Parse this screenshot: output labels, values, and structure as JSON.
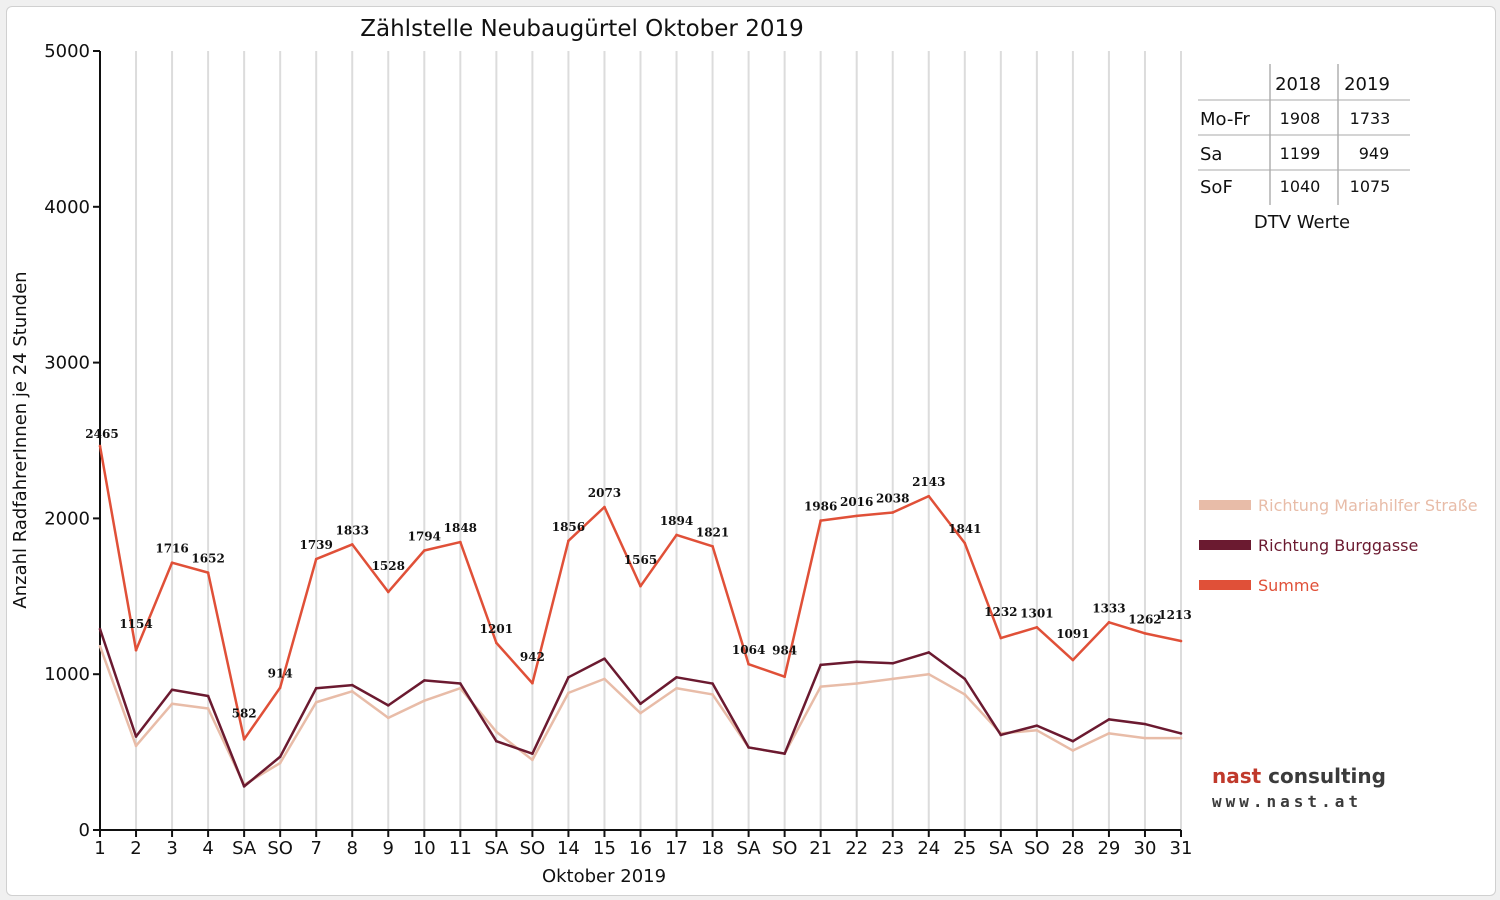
{
  "chart_data": {
    "type": "line",
    "title": "Zählstelle Neubaugürtel Oktober 2019",
    "xlabel": "Oktober 2019",
    "ylabel": "Anzahl RadfahrerInnen je 24 Stunden",
    "ylim": [
      0,
      5000
    ],
    "y_ticks": [
      "0",
      "1000",
      "2000",
      "3000",
      "4000",
      "5000"
    ],
    "categories": [
      "1",
      "2",
      "3",
      "4",
      "SA",
      "SO",
      "7",
      "8",
      "9",
      "10",
      "11",
      "SA",
      "SO",
      "14",
      "15",
      "16",
      "17",
      "18",
      "SA",
      "SO",
      "21",
      "22",
      "23",
      "24",
      "25",
      "SA",
      "SO",
      "28",
      "29",
      "30",
      "31"
    ],
    "category_colors": [
      "#111111",
      "#111111",
      "#111111",
      "#111111",
      "#111111",
      "#e00000",
      "#111111",
      "#111111",
      "#111111",
      "#111111",
      "#111111",
      "#111111",
      "#e00000",
      "#111111",
      "#111111",
      "#111111",
      "#111111",
      "#111111",
      "#111111",
      "#e00000",
      "#111111",
      "#111111",
      "#111111",
      "#111111",
      "#111111",
      "#111111",
      "#e00000",
      "#111111",
      "#111111",
      "#111111",
      "#111111"
    ],
    "grid": "vertical",
    "legend_position": "right",
    "series": [
      {
        "name": "Richtung Mariahilfer Straße",
        "color": "#e8bca8",
        "values": [
          1180,
          540,
          810,
          780,
          290,
          430,
          820,
          890,
          720,
          830,
          910,
          630,
          450,
          880,
          970,
          750,
          910,
          870,
          530,
          490,
          920,
          940,
          970,
          1000,
          870,
          620,
          640,
          510,
          620,
          590,
          590
        ]
      },
      {
        "name": "Richtung Burggasse",
        "color": "#6b1a30",
        "values": [
          1290,
          600,
          900,
          860,
          280,
          470,
          910,
          930,
          800,
          960,
          940,
          570,
          490,
          980,
          1100,
          810,
          980,
          940,
          530,
          490,
          1060,
          1080,
          1070,
          1140,
          970,
          610,
          670,
          570,
          710,
          680,
          620
        ]
      },
      {
        "name": "Summe",
        "color": "#e05038",
        "values": [
          2465,
          1154,
          1716,
          1652,
          582,
          914,
          1739,
          1833,
          1528,
          1794,
          1848,
          1201,
          942,
          1856,
          2073,
          1565,
          1894,
          1821,
          1064,
          984,
          1986,
          2016,
          2038,
          2143,
          1841,
          1232,
          1301,
          1091,
          1333,
          1262,
          1213
        ],
        "data_labels": [
          "2465",
          "1154",
          "1716",
          "1652",
          "582",
          "914",
          "1739",
          "1833",
          "1528",
          "1794",
          "1848",
          "1201",
          "942",
          "1856",
          "2073",
          "1565",
          "1894",
          "1821",
          "1064",
          "984",
          "1986",
          "2016",
          "2038",
          "2143",
          "1841",
          "1232",
          "1301",
          "1091",
          "1333",
          "1262",
          "1213"
        ]
      }
    ]
  },
  "dtv_table": {
    "headers": [
      "2018",
      "2019"
    ],
    "rows": [
      {
        "label": "Mo-Fr",
        "v2018": "1908",
        "v2019": "1733"
      },
      {
        "label": "Sa",
        "v2018": "1199",
        "v2019": "949"
      },
      {
        "label": "SoF",
        "v2018": "1040",
        "v2019": "1075"
      }
    ],
    "caption": "DTV Werte"
  },
  "logo": {
    "name_part1": "nast",
    "name_part2": " consulting",
    "url": "www.nast.at"
  }
}
